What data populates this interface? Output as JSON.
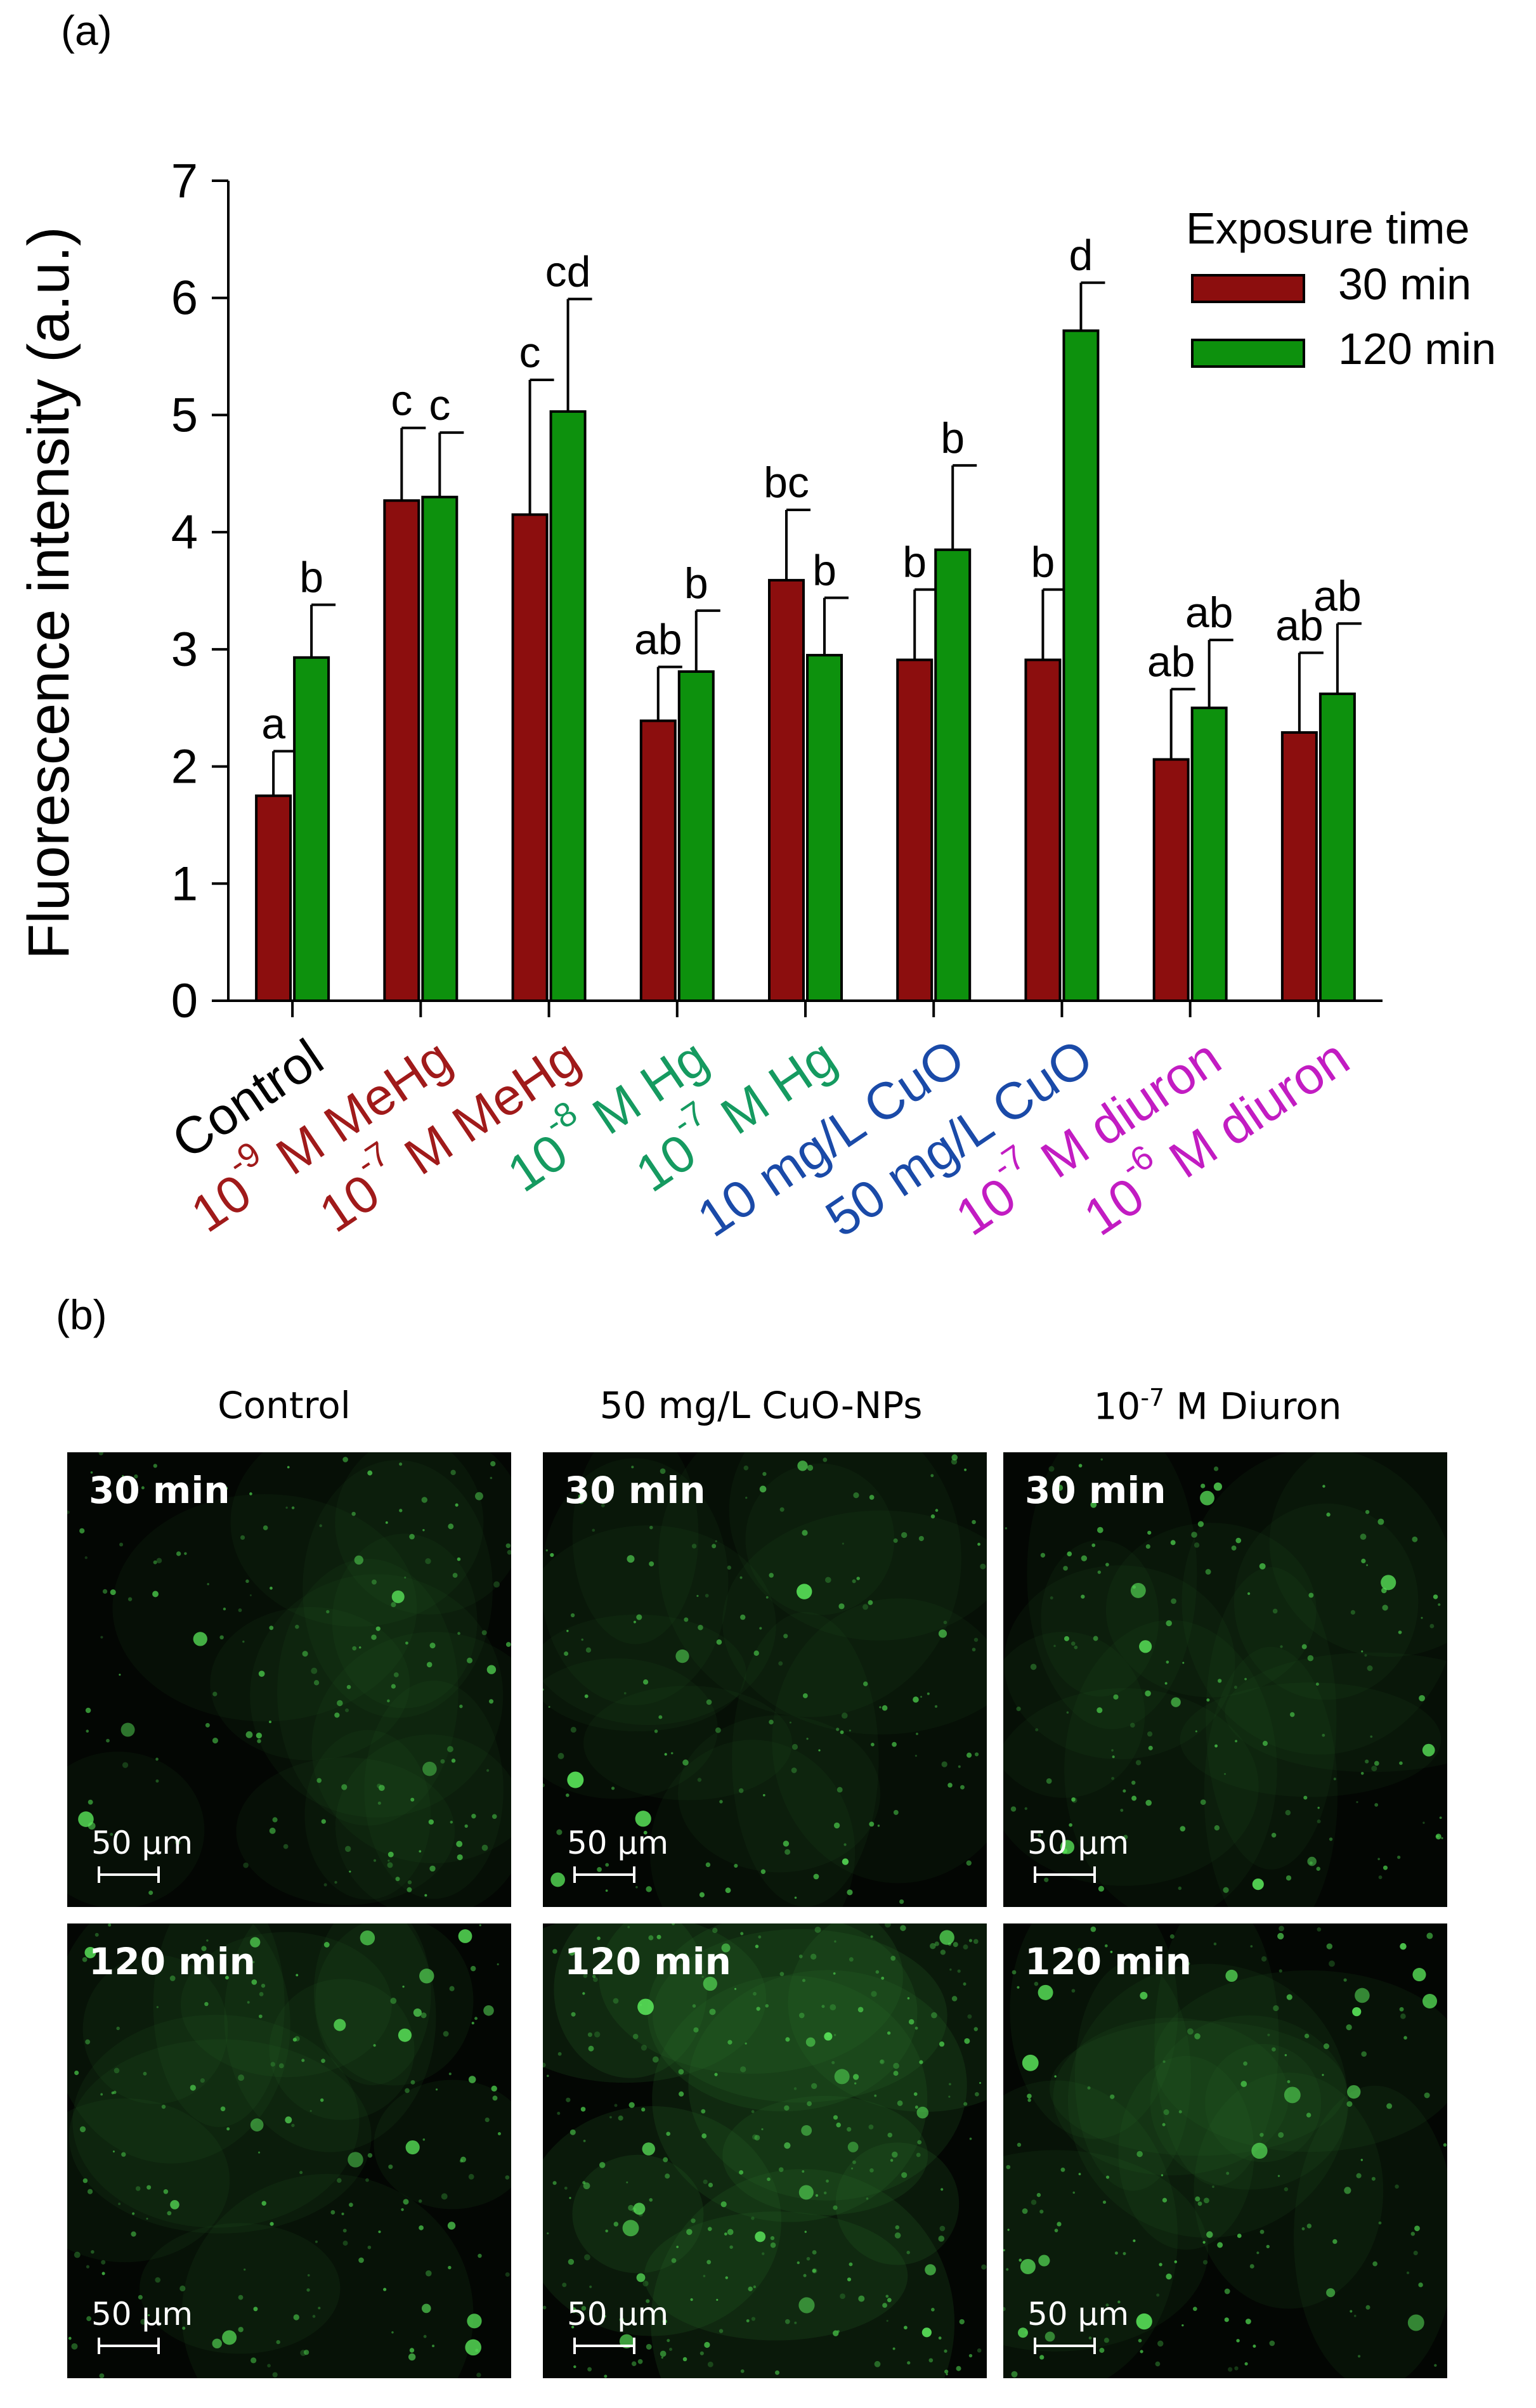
{
  "panel_a_label": "(a)",
  "panel_b_label": "(b)",
  "chart_data": {
    "type": "bar",
    "ylabel": "Fluorescence intensity (a.u.)",
    "ylim": [
      0,
      7
    ],
    "yticks": [
      "0",
      "1",
      "2",
      "3",
      "4",
      "5",
      "6",
      "7"
    ],
    "legend": {
      "title": "Exposure time",
      "placement": "top-right"
    },
    "categories": [
      {
        "parts": [
          {
            "t": "Control"
          }
        ],
        "color": "#000000"
      },
      {
        "parts": [
          {
            "t": "10"
          },
          {
            "t": "-9",
            "sup": true
          },
          {
            "t": " M MeHg"
          }
        ],
        "color": "#a01a1a"
      },
      {
        "parts": [
          {
            "t": "10"
          },
          {
            "t": "-7",
            "sup": true
          },
          {
            "t": " M MeHg"
          }
        ],
        "color": "#a01a1a"
      },
      {
        "parts": [
          {
            "t": "10"
          },
          {
            "t": "-8",
            "sup": true
          },
          {
            "t": " M Hg"
          }
        ],
        "color": "#159a60"
      },
      {
        "parts": [
          {
            "t": "10"
          },
          {
            "t": "-7",
            "sup": true
          },
          {
            "t": " M Hg"
          }
        ],
        "color": "#159a60"
      },
      {
        "parts": [
          {
            "t": "10 mg/L CuO"
          }
        ],
        "color": "#1a4aa8"
      },
      {
        "parts": [
          {
            "t": "50 mg/L CuO"
          }
        ],
        "color": "#1a4aa8"
      },
      {
        "parts": [
          {
            "t": "10"
          },
          {
            "t": "-7",
            "sup": true
          },
          {
            "t": " M diuron"
          }
        ],
        "color": "#c21cc2"
      },
      {
        "parts": [
          {
            "t": "10"
          },
          {
            "t": "-6",
            "sup": true
          },
          {
            "t": " M diuron"
          }
        ],
        "color": "#c21cc2"
      }
    ],
    "series": [
      {
        "name": "30 min",
        "color": "#8c0e0e",
        "values": [
          1.75,
          4.27,
          4.15,
          2.39,
          3.59,
          2.91,
          2.91,
          2.06,
          2.29
        ],
        "errors": [
          0.38,
          0.62,
          1.15,
          0.46,
          0.6,
          0.6,
          0.6,
          0.6,
          0.68
        ],
        "letters": [
          "a",
          "c",
          "c",
          "ab",
          "bc",
          "b",
          "b",
          "ab",
          "ab"
        ]
      },
      {
        "name": "120 min",
        "color": "#0d910d",
        "values": [
          2.93,
          4.3,
          5.03,
          2.81,
          2.95,
          3.85,
          5.72,
          2.5,
          2.62
        ],
        "errors": [
          0.45,
          0.55,
          0.96,
          0.52,
          0.49,
          0.72,
          0.41,
          0.58,
          0.6
        ],
        "letters": [
          "b",
          "c",
          "cd",
          "b",
          "b",
          "b",
          "d",
          "ab",
          "ab"
        ]
      }
    ]
  },
  "micrographs": {
    "columns": [
      {
        "parts": [
          {
            "t": "Control"
          }
        ]
      },
      {
        "parts": [
          {
            "t": "50 mg/L CuO-NPs"
          }
        ]
      },
      {
        "parts": [
          {
            "t": "10"
          },
          {
            "t": "-7",
            "sup": true
          },
          {
            "t": " M Diuron"
          }
        ]
      }
    ],
    "time_labels": [
      "30 min",
      "120 min"
    ],
    "scale_bar": "50 µm"
  }
}
